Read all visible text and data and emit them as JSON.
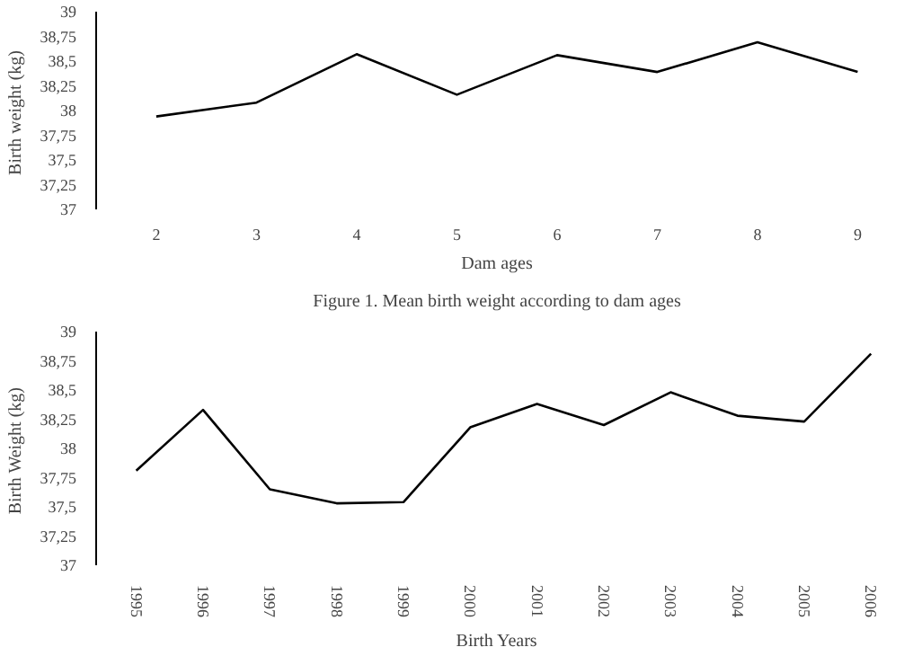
{
  "chart_data": [
    {
      "type": "line",
      "xlabel": "Dam ages",
      "ylabel": "Birth weight  (kg)",
      "categories": [
        "2",
        "3",
        "4",
        "5",
        "6",
        "7",
        "8",
        "9"
      ],
      "series": [
        {
          "color": "#000000",
          "values": [
            37.94,
            38.08,
            38.57,
            38.16,
            38.56,
            38.39,
            38.69,
            38.39
          ]
        }
      ],
      "ylim": [
        37,
        39
      ],
      "yticks": [
        37,
        {
          "value": 37.25,
          "label": "37,25"
        },
        {
          "value": 37.5,
          "label": "37,5"
        },
        {
          "value": 37.75,
          "label": "37,75"
        },
        38,
        {
          "value": 38.25,
          "label": "38,25"
        },
        {
          "value": 38.5,
          "label": "38,5"
        },
        {
          "value": 38.75,
          "label": "38,75"
        },
        39
      ],
      "annotations": [
        "Figure 1. Mean birth weight according to dam ages"
      ]
    },
    {
      "type": "line",
      "xlabel": "Birth Years",
      "ylabel": "Birth Weight  (kg)",
      "categories": [
        "1995",
        "1996",
        "1997",
        "1998",
        "1999",
        "2000",
        "2001",
        "2002",
        "2003",
        "2004",
        "2005",
        "2006"
      ],
      "series": [
        {
          "color": "#000000",
          "values": [
            37.81,
            38.33,
            37.65,
            37.53,
            37.54,
            38.18,
            38.38,
            38.2,
            38.48,
            38.28,
            38.23,
            38.81
          ]
        }
      ],
      "ylim": [
        37,
        39
      ],
      "yticks": [
        37,
        {
          "value": 37.25,
          "label": "37,25"
        },
        {
          "value": 37.5,
          "label": "37,5"
        },
        {
          "value": 37.75,
          "label": "37,75"
        },
        38,
        {
          "value": 38.25,
          "label": "38,25"
        },
        {
          "value": 38.5,
          "label": "38,5"
        },
        {
          "value": 38.75,
          "label": "38,75"
        },
        39
      ]
    }
  ]
}
